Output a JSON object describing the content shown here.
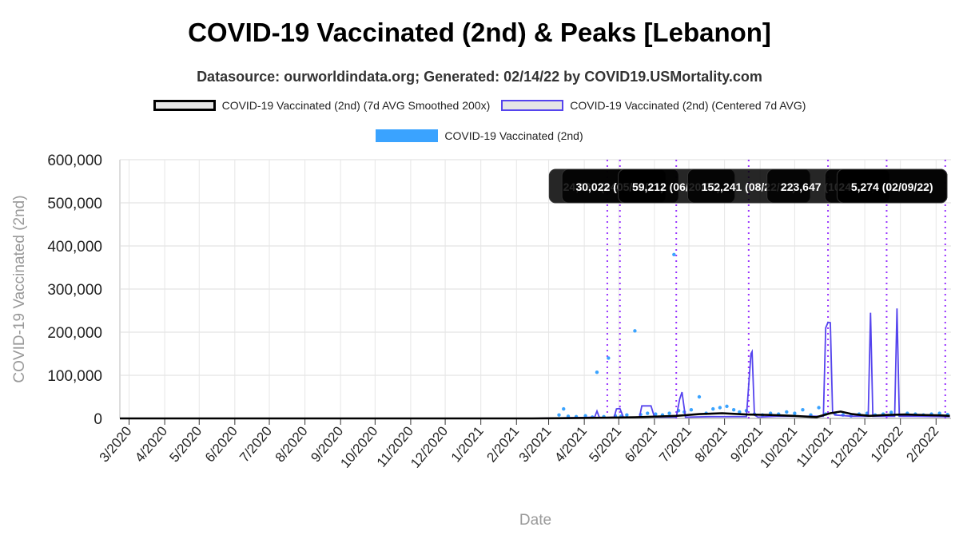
{
  "chart_data": {
    "type": "line",
    "title": "COVID-19 Vaccinated (2nd) & Peaks [Lebanon]",
    "subtitle": "Datasource: ourworldindata.org; Generated: 02/14/22 by COVID19.USMortality.com",
    "xlabel": "Date",
    "ylabel": "COVID-19 Vaccinated (2nd)",
    "ylim": [
      0,
      600000
    ],
    "xlim": [
      "2020-02-22",
      "2022-02-14"
    ],
    "yticks": [
      "0",
      "100,000",
      "200,000",
      "300,000",
      "400,000",
      "500,000",
      "600,000"
    ],
    "xticks": [
      "3/2020",
      "4/2020",
      "5/2020",
      "6/2020",
      "7/2020",
      "8/2020",
      "9/2020",
      "10/2020",
      "11/2020",
      "12/2020",
      "1/2021",
      "2/2021",
      "3/2021",
      "4/2021",
      "5/2021",
      "6/2021",
      "7/2021",
      "8/2021",
      "9/2021",
      "10/2021",
      "11/2021",
      "12/2021",
      "1/2022",
      "2/2022"
    ],
    "grid": true,
    "legend_position": "top",
    "series": [
      {
        "name": "COVID-19 Vaccinated (2nd) (7d AVG Smoothed 200x)",
        "color": "#000000",
        "x": [
          "2020-02-22",
          "2021-02-15",
          "2021-03-15",
          "2021-04-15",
          "2021-05-15",
          "2021-06-01",
          "2021-06-20",
          "2021-07-10",
          "2021-07-30",
          "2021-08-20",
          "2021-09-10",
          "2021-09-30",
          "2021-10-20",
          "2021-11-01",
          "2021-11-10",
          "2021-11-20",
          "2021-12-05",
          "2021-12-20",
          "2022-01-05",
          "2022-01-20",
          "2022-02-05",
          "2022-02-13"
        ],
        "values": [
          0,
          0,
          500,
          1500,
          2500,
          4000,
          6000,
          10000,
          12000,
          9000,
          8000,
          6000,
          3000,
          12000,
          16000,
          10000,
          6000,
          8000,
          9000,
          8000,
          7000,
          6000
        ]
      },
      {
        "name": "COVID-19 Vaccinated (2nd) (Centered 7d AVG)",
        "color": "#5544ee",
        "x": [
          "2020-02-22",
          "2021-02-15",
          "2021-03-30",
          "2021-04-10",
          "2021-04-12",
          "2021-04-14",
          "2021-04-16",
          "2021-04-27",
          "2021-04-29",
          "2021-05-02",
          "2021-05-05",
          "2021-05-19",
          "2021-05-21",
          "2021-05-29",
          "2021-06-01",
          "2021-06-20",
          "2021-06-23",
          "2021-06-25",
          "2021-06-28",
          "2021-07-20",
          "2021-08-20",
          "2021-08-24",
          "2021-08-25",
          "2021-08-27",
          "2021-08-30",
          "2021-09-15",
          "2021-10-15",
          "2021-10-26",
          "2021-10-28",
          "2021-10-30",
          "2021-11-01",
          "2021-11-03",
          "2021-11-05",
          "2021-11-20",
          "2021-12-04",
          "2021-12-06",
          "2021-12-08",
          "2021-12-20",
          "2021-12-27",
          "2021-12-29",
          "2021-12-31",
          "2022-01-15",
          "2022-02-13"
        ],
        "values": [
          0,
          0,
          2000,
          3000,
          17000,
          3000,
          1500,
          3000,
          22000,
          23000,
          3000,
          3000,
          29000,
          29000,
          3000,
          3000,
          45000,
          61000,
          3000,
          4000,
          4000,
          150000,
          155000,
          8000,
          3000,
          5000,
          5000,
          5000,
          210000,
          223000,
          222000,
          15000,
          8000,
          5000,
          5000,
          245000,
          5000,
          5000,
          5000,
          255000,
          5000,
          5000,
          4000
        ]
      },
      {
        "name": "COVID-19 Vaccinated (2nd)",
        "color": "#3aa3ff",
        "x": [
          "2021-03-10",
          "2021-03-14",
          "2021-03-18",
          "2021-03-25",
          "2021-04-02",
          "2021-04-08",
          "2021-04-12",
          "2021-04-18",
          "2021-04-22",
          "2021-04-28",
          "2021-05-03",
          "2021-05-08",
          "2021-05-15",
          "2021-05-20",
          "2021-05-26",
          "2021-06-02",
          "2021-06-08",
          "2021-06-14",
          "2021-06-18",
          "2021-06-22",
          "2021-06-27",
          "2021-07-03",
          "2021-07-10",
          "2021-07-16",
          "2021-07-22",
          "2021-07-28",
          "2021-08-03",
          "2021-08-09",
          "2021-08-14",
          "2021-08-20",
          "2021-08-27",
          "2021-09-03",
          "2021-09-10",
          "2021-09-17",
          "2021-09-24",
          "2021-10-01",
          "2021-10-08",
          "2021-10-15",
          "2021-10-22",
          "2021-10-28",
          "2021-11-05",
          "2021-11-12",
          "2021-11-19",
          "2021-11-26",
          "2021-12-03",
          "2021-12-10",
          "2021-12-17",
          "2021-12-24",
          "2021-12-31",
          "2022-01-07",
          "2022-01-14",
          "2022-01-21",
          "2022-01-28",
          "2022-02-04",
          "2022-02-11"
        ],
        "values": [
          8000,
          22000,
          5000,
          4000,
          6000,
          3000,
          107000,
          4000,
          140000,
          6000,
          5000,
          8000,
          203000,
          9000,
          12000,
          10000,
          8000,
          12000,
          380000,
          18000,
          15000,
          20000,
          50000,
          12000,
          22000,
          25000,
          28000,
          20000,
          15000,
          18000,
          10000,
          8000,
          12000,
          10000,
          15000,
          12000,
          20000,
          8000,
          25000,
          10000,
          12000,
          8000,
          6000,
          10000,
          12000,
          8000,
          10000,
          14000,
          8000,
          12000,
          10000,
          8000,
          10000,
          12000,
          9000
        ]
      }
    ],
    "peaks": [
      {
        "date": "2021-04-21",
        "label": "24,030 (04/21/21)"
      },
      {
        "date": "2021-05-02",
        "label": "30,022 (05/02/21)"
      },
      {
        "date": "2021-06-20",
        "label": "59,212 (06/20/21)"
      },
      {
        "date": "2021-08-22",
        "label": "152,241 (08/22/21)"
      },
      {
        "date": "2021-10-30",
        "label": "223,647 (10/30/21)"
      },
      {
        "date": "2021-12-20",
        "label": "245,274 (12/20/21)"
      },
      {
        "date": "2022-02-09",
        "label": "5,274 (02/09/22)"
      }
    ],
    "peak_label_color": "#000000",
    "peak_line_color": "#9933ff"
  }
}
